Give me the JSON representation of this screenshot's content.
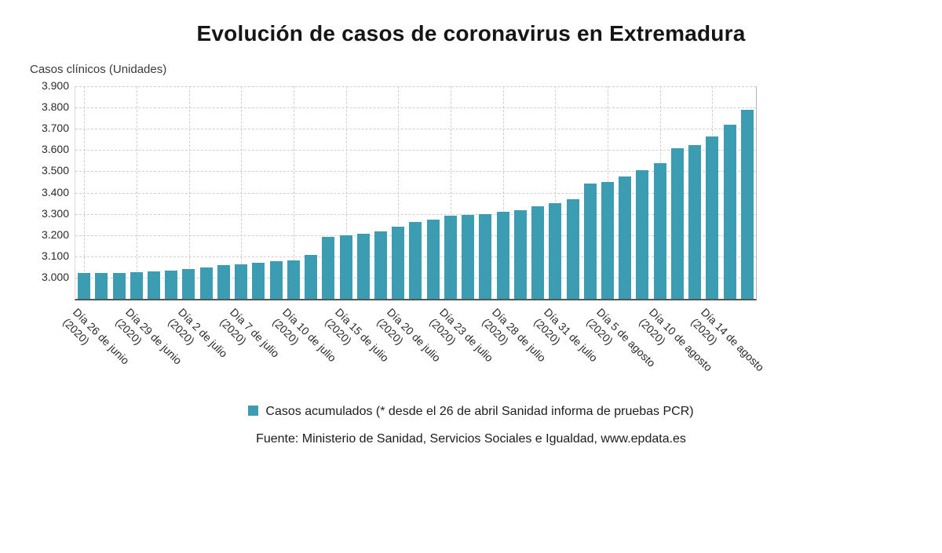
{
  "title": "Evolución de casos de coronavirus en Extremadura",
  "y_axis_title": "Casos clínicos (Unidades)",
  "legend": {
    "label": "Casos acumulados (* desde el 26 de abril Sanidad informa de pruebas PCR)",
    "color": "#3C9DB2"
  },
  "source": "Fuente: Ministerio de Sanidad, Servicios Sociales e Igualdad, www.epdata.es",
  "chart_data": {
    "type": "bar",
    "title": "Evolución de casos de coronavirus en Extremadura",
    "xlabel": "",
    "ylabel": "Casos clínicos (Unidades)",
    "bar_color": "#3C9DB2",
    "grid": "dashed",
    "legend_position": "bottom",
    "ylim": [
      2900,
      3900
    ],
    "y_ticks": [
      {
        "value": 3900,
        "label": "3.900"
      },
      {
        "value": 3800,
        "label": "3.800"
      },
      {
        "value": 3700,
        "label": "3.700"
      },
      {
        "value": 3600,
        "label": "3.600"
      },
      {
        "value": 3500,
        "label": "3.500"
      },
      {
        "value": 3400,
        "label": "3.400"
      },
      {
        "value": 3300,
        "label": "3.300"
      },
      {
        "value": 3200,
        "label": "3.200"
      },
      {
        "value": 3100,
        "label": "3.100"
      },
      {
        "value": 3000,
        "label": "3.000"
      }
    ],
    "series": [
      {
        "name": "Casos acumulados (* desde el 26 de abril Sanidad informa de pruebas PCR)",
        "values": [
          3022,
          3023,
          3023,
          3026,
          3029,
          3033,
          3040,
          3046,
          3060,
          3064,
          3068,
          3078,
          3082,
          3105,
          3190,
          3198,
          3207,
          3216,
          3240,
          3262,
          3274,
          3290,
          3294,
          3298,
          3310,
          3318,
          3337,
          3349,
          3370,
          3443,
          3451,
          3475,
          3505,
          3538,
          3610,
          3623,
          3663,
          3720,
          3790
        ]
      }
    ],
    "x_labels": [
      {
        "bar_index": 0,
        "line1": "Día 26 de junio",
        "line2": "(2020)"
      },
      {
        "bar_index": 3,
        "line1": "Día 29 de junio",
        "line2": "(2020)"
      },
      {
        "bar_index": 6,
        "line1": "Día 2 de julio",
        "line2": "(2020)"
      },
      {
        "bar_index": 9,
        "line1": "Día 7 de julio",
        "line2": "(2020)"
      },
      {
        "bar_index": 12,
        "line1": "Día 10 de julio",
        "line2": "(2020)"
      },
      {
        "bar_index": 15,
        "line1": "Día 15 de julio",
        "line2": "(2020)"
      },
      {
        "bar_index": 18,
        "line1": "Día 20 de julio",
        "line2": "(2020)"
      },
      {
        "bar_index": 21,
        "line1": "Día 23 de julio",
        "line2": "(2020)"
      },
      {
        "bar_index": 24,
        "line1": "Día 28 de julio",
        "line2": "(2020)"
      },
      {
        "bar_index": 27,
        "line1": "Día 31 de julio",
        "line2": "(2020)"
      },
      {
        "bar_index": 30,
        "line1": "Día 5 de agosto",
        "line2": "(2020)"
      },
      {
        "bar_index": 33,
        "line1": "Día 10 de agosto",
        "line2": "(2020)"
      },
      {
        "bar_index": 36,
        "line1": "Día 14 de agosto",
        "line2": "(2020)"
      }
    ]
  }
}
